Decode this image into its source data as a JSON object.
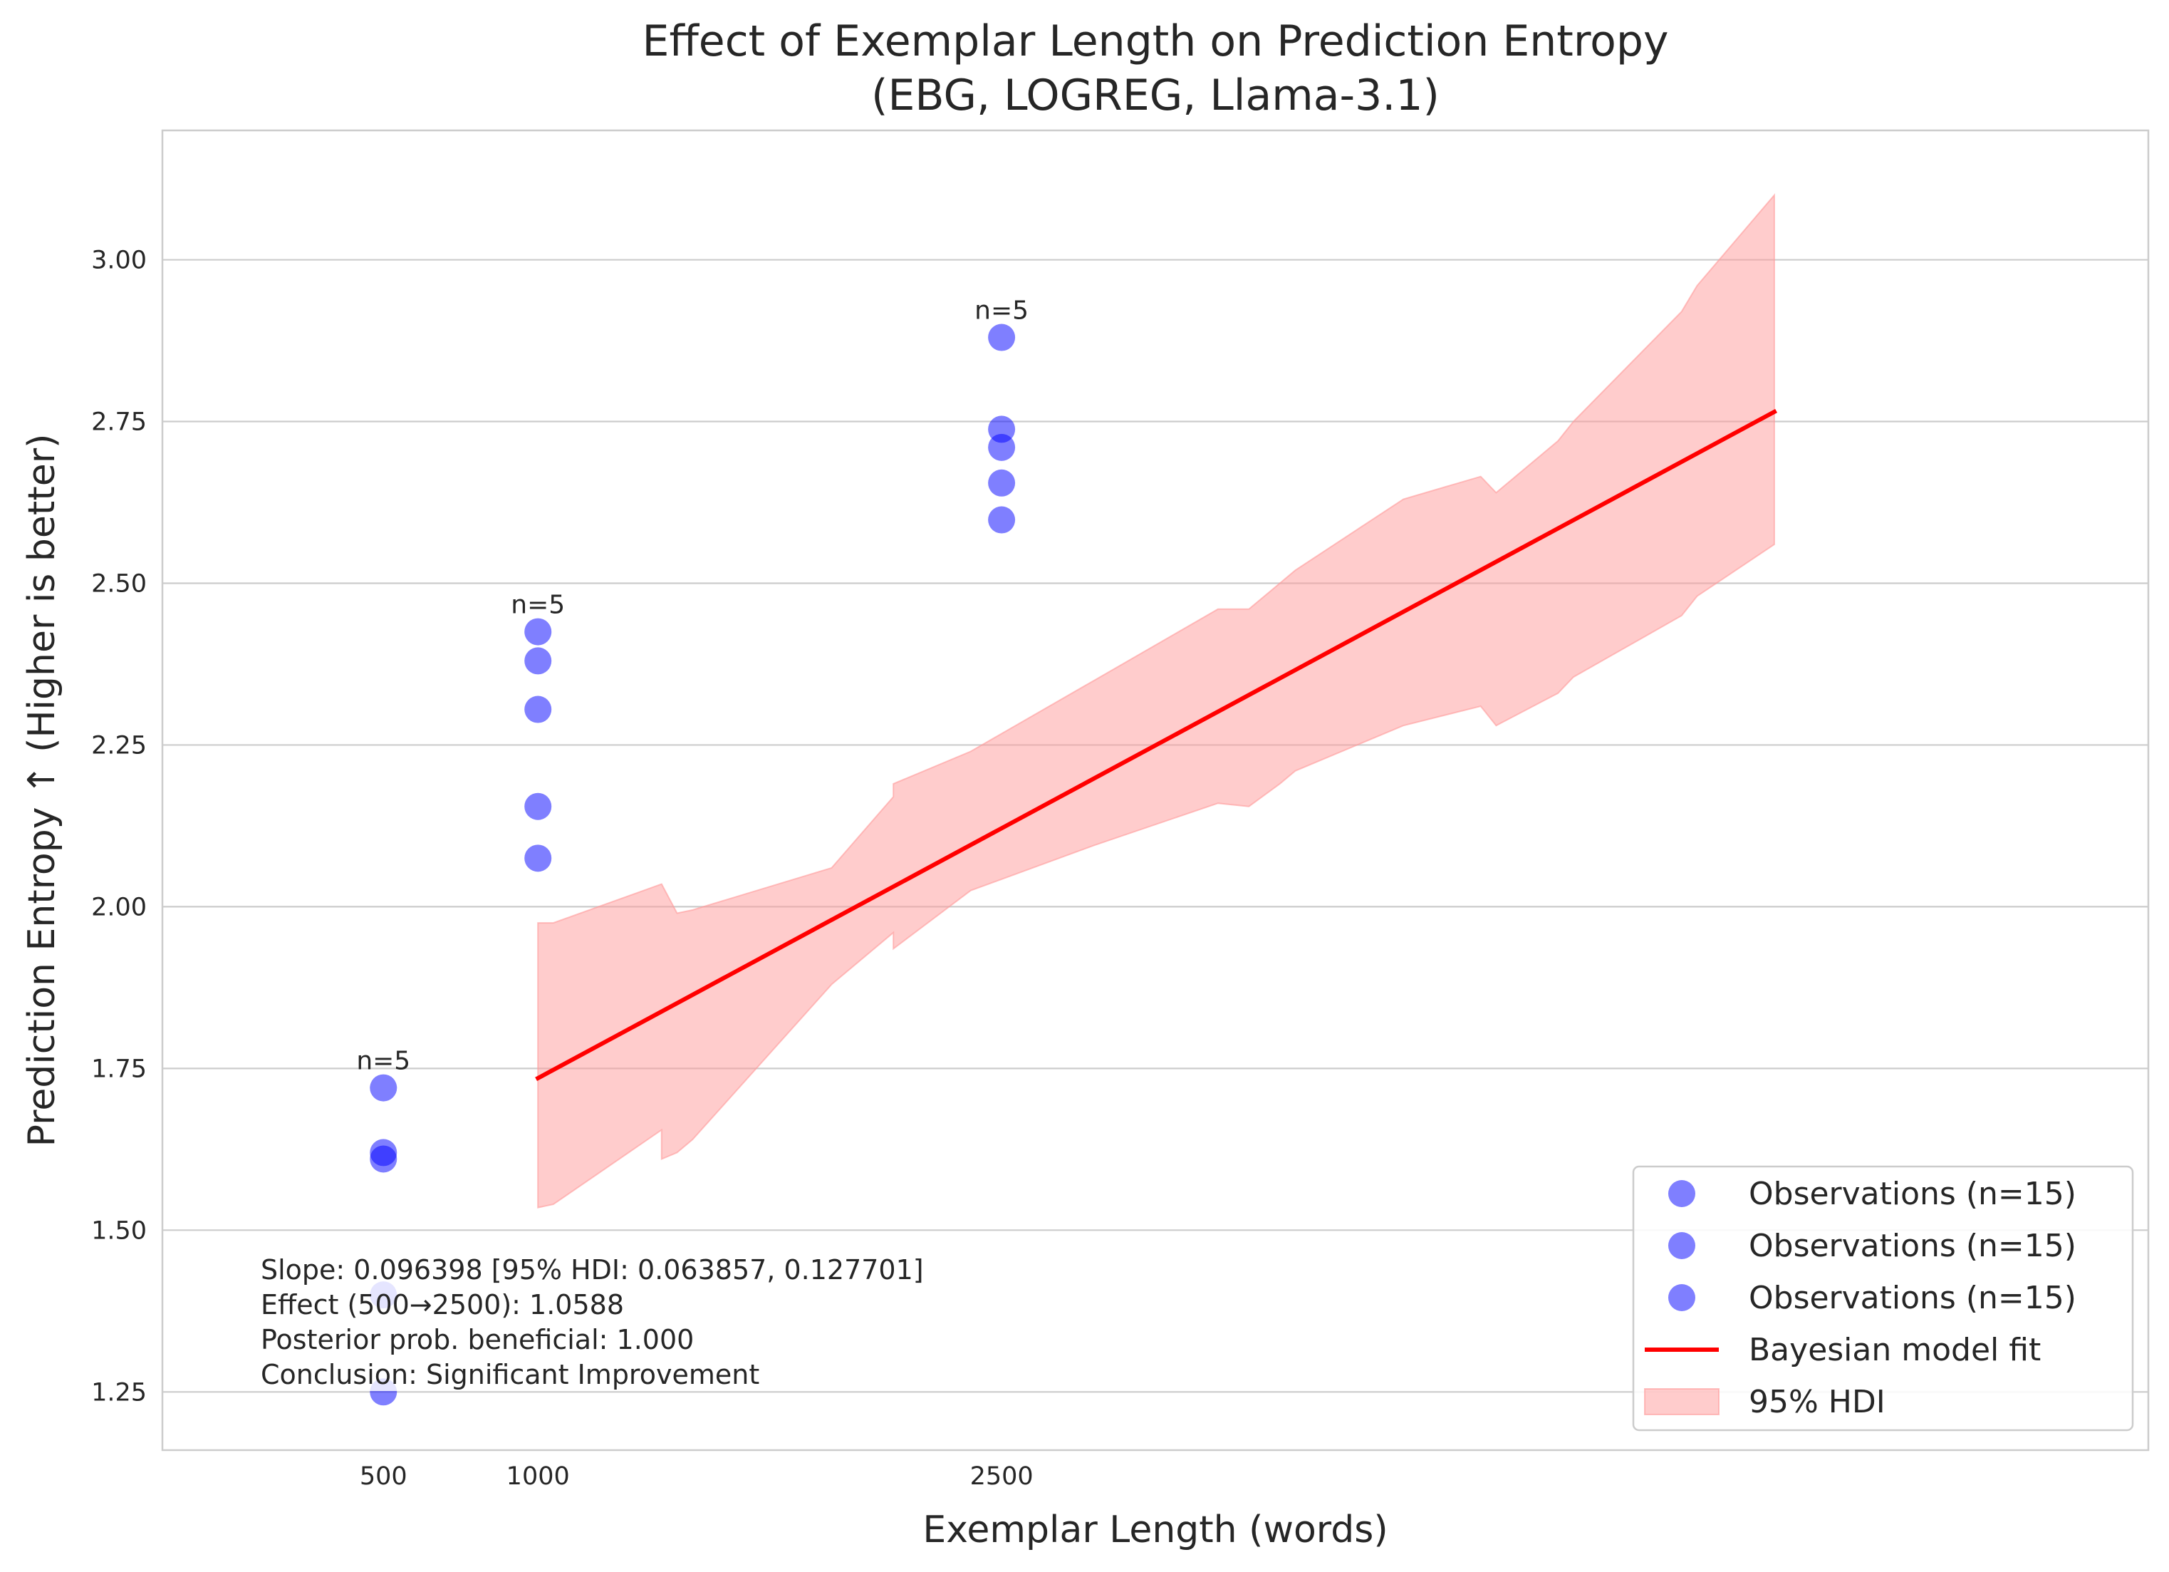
{
  "chart_data": {
    "type": "scatter",
    "title_lines": [
      "Effect of Exemplar Length on Prediction Entropy",
      "(EBG, LOGREG, Llama-3.1)"
    ],
    "xlabel": "Exemplar Length (words)",
    "ylabel": "Prediction Entropy ↑ (Higher is better)",
    "xlim": [
      -215,
      6210
    ],
    "ylim": [
      1.16,
      3.2
    ],
    "x_tick_labels": [
      "500",
      "1000",
      "2500"
    ],
    "yticks": [
      1.25,
      1.5,
      1.75,
      2.0,
      2.25,
      2.5,
      2.75,
      3.0
    ],
    "ytick_labels": [
      "1.25",
      "1.50",
      "1.75",
      "2.00",
      "2.25",
      "2.50",
      "2.75",
      "3.00"
    ],
    "grid": "horizontal",
    "legend_position": "lower-right",
    "series": [
      {
        "name": "Observations (n=15)",
        "kind": "scatter",
        "color": "#0000ff",
        "alpha": 0.5,
        "x": [
          500,
          500,
          500,
          500,
          500
        ],
        "y": [
          1.72,
          1.62,
          1.61,
          1.4,
          1.25
        ]
      },
      {
        "name": "Observations (n=15)",
        "kind": "scatter",
        "color": "#0000ff",
        "alpha": 0.5,
        "x": [
          1000,
          1000,
          1000,
          1000,
          1000
        ],
        "y": [
          2.425,
          2.38,
          2.305,
          2.155,
          2.075
        ]
      },
      {
        "name": "Observations (n=15)",
        "kind": "scatter",
        "color": "#0000ff",
        "alpha": 0.5,
        "x": [
          2500,
          2500,
          2500,
          2500,
          2500
        ],
        "y": [
          2.88,
          2.738,
          2.71,
          2.655,
          2.598
        ]
      },
      {
        "name": "Bayesian model fit",
        "kind": "line",
        "color": "#ff0000",
        "x": [
          1000,
          5000
        ],
        "y": [
          1.735,
          2.765
        ]
      },
      {
        "name": "95% HDI",
        "kind": "band",
        "color": "#ff9999",
        "alpha": 0.5,
        "x": [
          1000,
          1050,
          1400,
          1400,
          1450,
          1500,
          1950,
          2150,
          2150,
          2400,
          2800,
          3200,
          3300,
          3400,
          3450,
          3800,
          4050,
          4100,
          4300,
          4350,
          4700,
          4750,
          5000
        ],
        "upper": [
          1.975,
          1.975,
          2.035,
          2.035,
          1.99,
          1.995,
          2.06,
          2.17,
          2.19,
          2.24,
          2.35,
          2.46,
          2.46,
          2.5,
          2.52,
          2.63,
          2.665,
          2.64,
          2.72,
          2.75,
          2.92,
          2.96,
          3.1
        ],
        "lower": [
          1.535,
          1.54,
          1.655,
          1.61,
          1.62,
          1.64,
          1.88,
          1.96,
          1.935,
          2.025,
          2.095,
          2.16,
          2.155,
          2.19,
          2.21,
          2.28,
          2.31,
          2.28,
          2.33,
          2.355,
          2.45,
          2.48,
          2.56
        ]
      }
    ],
    "annotations": [
      {
        "text": "n=5",
        "x": 500,
        "y": 1.72
      },
      {
        "text": "n=5",
        "x": 1000,
        "y": 2.425
      },
      {
        "text": "n=5",
        "x": 2500,
        "y": 2.88
      }
    ],
    "stats_box": [
      "Slope: 0.096398 [95% HDI: 0.063857, 0.127701]",
      "Effect (500→2500): 1.0588",
      "Posterior prob. beneficial: 1.000",
      "Conclusion: Significant Improvement"
    ]
  }
}
